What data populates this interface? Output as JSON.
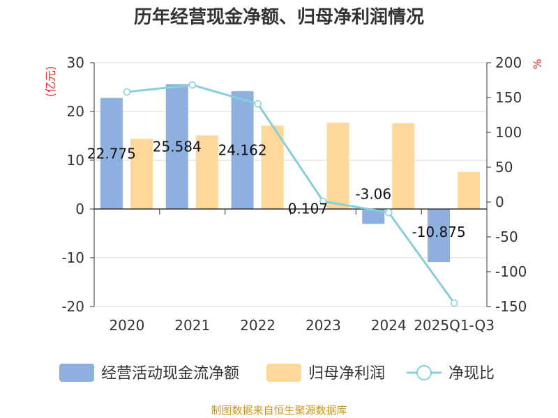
{
  "title": "历年经营现金净额、归母净利润情况",
  "source": "制图数据来自恒生聚源数据库",
  "colors": {
    "bar1": "#8eb0de",
    "bar2": "#fdd898",
    "line": "#86cfd8",
    "unit": "#e03030",
    "axis": "#333333",
    "grid": "#d9d9d9"
  },
  "chart_data": {
    "type": "bar+line",
    "categories": [
      "2020",
      "2021",
      "2022",
      "2023",
      "2024",
      "2025Q1-Q3"
    ],
    "y_left": {
      "unit": "(亿元)",
      "ylim": [
        -20,
        30
      ],
      "ticks": [
        "30",
        "20",
        "10",
        "0",
        "-10",
        "-20"
      ]
    },
    "y_right": {
      "unit": "%",
      "ylim": [
        -150,
        200
      ],
      "ticks": [
        "200",
        "150",
        "100",
        "50",
        "0",
        "-50",
        "-100",
        "-150"
      ]
    },
    "series": [
      {
        "name": "经营活动现金流净额",
        "type": "bar",
        "axis": "left",
        "values": [
          22.775,
          25.584,
          24.162,
          0.107,
          -3.06,
          -10.875
        ],
        "labels": [
          "22.775",
          "25.584",
          "24.162",
          "0.107",
          "-3.06",
          "-10.875"
        ]
      },
      {
        "name": "归母净利润",
        "type": "bar",
        "axis": "left",
        "values": [
          14.4,
          15.1,
          17.1,
          17.7,
          17.6,
          7.6
        ]
      },
      {
        "name": "净现比",
        "type": "line",
        "axis": "right",
        "values": [
          158,
          168,
          141,
          1,
          -15,
          -145
        ]
      }
    ],
    "legend": [
      "经营活动现金流净额",
      "归母净利润",
      "净现比"
    ]
  }
}
